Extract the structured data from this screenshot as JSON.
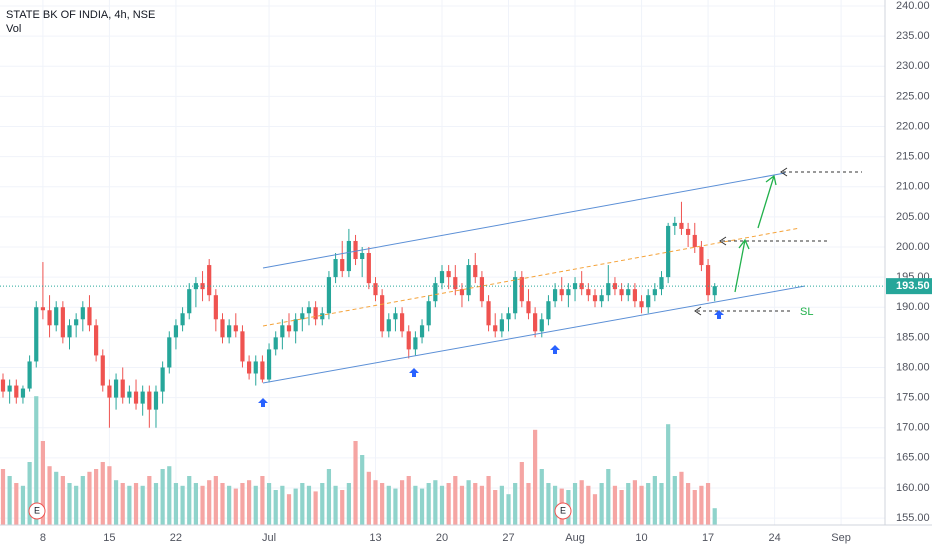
{
  "chart_data": {
    "type": "candlestick",
    "title": "STATE BK OF INDIA, 4h, NSE",
    "subtitle": "Vol",
    "up_color": "#26a69a",
    "down_color": "#ef5350",
    "volume_up_color": "#8fd3cb",
    "volume_down_color": "#f5a5a3",
    "ylim": [
      153.85,
      241.0
    ],
    "yticks": [
      {
        "value": 155,
        "label": "155.00"
      },
      {
        "value": 160,
        "label": "160.00"
      },
      {
        "value": 165,
        "label": "165.00"
      },
      {
        "value": 170,
        "label": "170.00"
      },
      {
        "value": 175,
        "label": "175.00"
      },
      {
        "value": 180,
        "label": "180.00"
      },
      {
        "value": 185,
        "label": "185.00"
      },
      {
        "value": 190,
        "label": "190.00"
      },
      {
        "value": 195,
        "label": "195.00"
      },
      {
        "value": 200,
        "label": "200.00"
      },
      {
        "value": 205,
        "label": "205.00"
      },
      {
        "value": 210,
        "label": "210.00"
      },
      {
        "value": 215,
        "label": "215.00"
      },
      {
        "value": 220,
        "label": "220.00"
      },
      {
        "value": 225,
        "label": "225.00"
      },
      {
        "value": 230,
        "label": "230.00"
      },
      {
        "value": 235,
        "label": "235.00"
      },
      {
        "value": 240,
        "label": "240.00"
      }
    ],
    "xlim": [
      -0.45,
      132.6
    ],
    "xticks": [
      {
        "value": 6,
        "label": "8"
      },
      {
        "value": 16,
        "label": "15"
      },
      {
        "value": 26,
        "label": "22"
      },
      {
        "value": 40,
        "label": "Jul"
      },
      {
        "value": 56,
        "label": "13"
      },
      {
        "value": 66,
        "label": "20"
      },
      {
        "value": 76,
        "label": "27"
      },
      {
        "value": 86,
        "label": "Aug"
      },
      {
        "value": 96,
        "label": "10"
      },
      {
        "value": 106,
        "label": "17"
      },
      {
        "value": 116,
        "label": "24"
      },
      {
        "value": 126,
        "label": "Sep"
      }
    ],
    "last_price": {
      "value": 193.5,
      "label": "193.50"
    },
    "vol_lim": [
      0,
      100
    ],
    "grid": true,
    "annotations": [
      "SL",
      "E",
      "E"
    ],
    "open": [
      178,
      176,
      177,
      175,
      176.5,
      181,
      190,
      189.5,
      187,
      190,
      185,
      187,
      188,
      190,
      187,
      182,
      177,
      175,
      178,
      175,
      176,
      174,
      176,
      173,
      176,
      180,
      185,
      187,
      189,
      193,
      194,
      197,
      192,
      188,
      185,
      187,
      186,
      181,
      179,
      181,
      178,
      183,
      185,
      187,
      186,
      188,
      189,
      190,
      188,
      189,
      195,
      198,
      196,
      201,
      198,
      199,
      194,
      192,
      186,
      188,
      189,
      186,
      183,
      185,
      187,
      191,
      194,
      196,
      195,
      193,
      192,
      197,
      195,
      191,
      187,
      186,
      188,
      189,
      195,
      191,
      189,
      186,
      188,
      191,
      193,
      192,
      193,
      194,
      193,
      192,
      191,
      192,
      194,
      193,
      192,
      193,
      191,
      190,
      192,
      193,
      195,
      203.5,
      204,
      203,
      202,
      200,
      197,
      192
    ],
    "high": [
      179,
      178,
      178,
      177,
      182,
      191,
      197.5,
      192,
      191,
      191,
      188,
      189,
      191,
      192,
      188,
      183,
      178,
      179,
      180,
      177,
      178,
      177,
      177,
      177,
      181,
      186,
      188,
      190,
      194,
      195,
      196,
      198,
      193,
      189,
      188,
      189,
      187,
      182,
      182,
      182,
      184,
      186,
      188,
      189,
      189,
      190,
      191,
      191,
      190,
      196,
      199,
      201,
      203,
      202,
      200,
      200,
      195,
      193,
      189,
      190,
      190,
      187,
      186,
      188,
      192,
      195,
      197,
      197,
      197,
      194,
      198,
      199,
      196,
      192,
      189,
      189,
      190,
      196,
      196,
      193,
      190,
      189,
      192,
      194,
      195,
      194,
      195,
      196,
      194,
      193,
      193,
      197,
      195,
      194,
      194,
      194,
      192,
      193,
      194,
      196,
      204,
      205,
      207.5,
      204,
      204,
      201,
      198,
      194
    ],
    "low": [
      175,
      174,
      174,
      174,
      176,
      180,
      188,
      185,
      186,
      184,
      183,
      185,
      186,
      186,
      181,
      176,
      170,
      173,
      174,
      174,
      173,
      172,
      170,
      170,
      174,
      179,
      183,
      186,
      188,
      190,
      191,
      191,
      186,
      184,
      184,
      185,
      180,
      178,
      177,
      177.5,
      177.5,
      182,
      183,
      185,
      184,
      186,
      187,
      187,
      187,
      188,
      194,
      195,
      195,
      197,
      195,
      193,
      191,
      185,
      185,
      186,
      185,
      181.5,
      182,
      184,
      186,
      190,
      193,
      193,
      192,
      190,
      191,
      194,
      190,
      186,
      185,
      185,
      186,
      188,
      190,
      188,
      185,
      185,
      187,
      190,
      191,
      190,
      191,
      192,
      191,
      190,
      190,
      191,
      192,
      191,
      191,
      190,
      189,
      189,
      191,
      192,
      194,
      202,
      202,
      200,
      199,
      196,
      191,
      191
    ],
    "close": [
      176,
      177,
      175,
      176.5,
      181,
      190,
      189.5,
      187,
      190,
      185,
      187,
      188,
      190,
      187,
      182,
      177,
      175,
      178,
      175,
      176,
      174,
      176,
      173,
      176,
      180,
      185,
      187,
      189,
      193,
      194,
      193,
      192,
      188,
      185,
      187,
      186,
      181,
      179,
      181,
      178,
      183,
      185,
      187,
      186,
      188,
      189,
      190,
      188,
      189,
      195,
      198,
      196,
      201,
      198,
      199,
      194,
      192,
      186,
      188,
      189,
      186,
      183,
      185,
      187,
      191,
      194,
      196,
      195,
      193,
      192,
      197,
      195,
      191,
      187,
      186,
      188,
      189,
      195,
      191,
      189,
      186,
      188,
      191,
      193,
      192,
      193,
      194,
      193,
      192,
      191,
      192,
      194,
      193,
      192,
      193,
      191,
      190,
      192,
      193,
      195,
      203.5,
      204,
      203,
      202,
      200,
      197,
      192,
      193.5
    ],
    "volume": [
      40,
      35,
      30,
      28,
      45,
      92,
      60,
      42,
      38,
      35,
      30,
      28,
      35,
      38,
      40,
      45,
      42,
      32,
      30,
      28,
      30,
      28,
      35,
      30,
      40,
      42,
      30,
      28,
      35,
      30,
      28,
      32,
      35,
      30,
      28,
      26,
      30,
      32,
      28,
      35,
      30,
      25,
      28,
      22,
      26,
      30,
      28,
      24,
      30,
      40,
      28,
      25,
      30,
      60,
      50,
      38,
      32,
      30,
      28,
      26,
      32,
      35,
      28,
      26,
      30,
      32,
      28,
      30,
      35,
      28,
      32,
      30,
      28,
      35,
      25,
      28,
      22,
      30,
      45,
      30,
      68,
      40,
      30,
      28,
      26,
      25,
      30,
      32,
      28,
      22,
      30,
      40,
      28,
      25,
      30,
      32,
      28,
      30,
      35,
      30,
      72,
      35,
      38,
      30,
      25,
      28,
      30,
      12
    ]
  }
}
